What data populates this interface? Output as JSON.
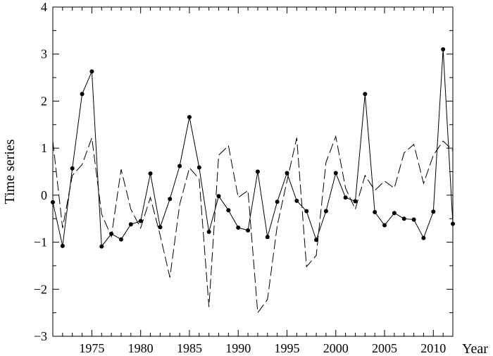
{
  "chart_data": {
    "type": "line",
    "title": "",
    "xlabel": "Year",
    "ylabel": "Time  series",
    "xlim": [
      1971,
      2012
    ],
    "ylim": [
      -3,
      4
    ],
    "x_ticks": [
      1975,
      1980,
      1985,
      1990,
      1995,
      2000,
      2005,
      2010
    ],
    "y_ticks": [
      -3,
      -2,
      -1,
      0,
      1,
      2,
      3,
      4
    ],
    "grid": false,
    "legend": "none",
    "x": [
      1971,
      1972,
      1973,
      1974,
      1975,
      1976,
      1977,
      1978,
      1979,
      1980,
      1981,
      1982,
      1983,
      1984,
      1985,
      1986,
      1987,
      1988,
      1989,
      1990,
      1991,
      1992,
      1993,
      1994,
      1995,
      1996,
      1997,
      1998,
      1999,
      2000,
      2001,
      2002,
      2003,
      2004,
      2005,
      2006,
      2007,
      2008,
      2009,
      2010,
      2011,
      2012
    ],
    "series": [
      {
        "style": "solid-with-dots",
        "color": "#000000",
        "values": [
          -0.15,
          -1.08,
          0.57,
          2.15,
          2.63,
          -1.09,
          -0.82,
          -0.94,
          -0.62,
          -0.55,
          0.46,
          -0.68,
          -0.08,
          0.62,
          1.66,
          0.59,
          -0.78,
          -0.02,
          -0.32,
          -0.69,
          -0.75,
          0.5,
          -0.89,
          -0.14,
          0.47,
          -0.12,
          -0.34,
          -0.95,
          -0.34,
          0.47,
          -0.05,
          -0.13,
          2.15,
          -0.36,
          -0.64,
          -0.38,
          -0.5,
          -0.52,
          -0.91,
          -0.35,
          3.1,
          -0.61
        ]
      },
      {
        "style": "dashed",
        "color": "#000000",
        "values": [
          1.15,
          -0.7,
          0.42,
          0.65,
          1.22,
          -0.4,
          -0.88,
          0.55,
          -0.3,
          -0.7,
          -0.05,
          -0.85,
          -1.75,
          -0.2,
          0.58,
          0.35,
          -2.38,
          0.85,
          1.05,
          -0.05,
          0.1,
          -2.5,
          -2.22,
          -0.65,
          0.3,
          1.22,
          -1.52,
          -1.28,
          0.7,
          1.25,
          0.15,
          -0.3,
          0.42,
          0.1,
          0.3,
          0.15,
          0.9,
          1.08,
          0.25,
          0.85,
          1.15,
          0.95
        ]
      }
    ]
  }
}
